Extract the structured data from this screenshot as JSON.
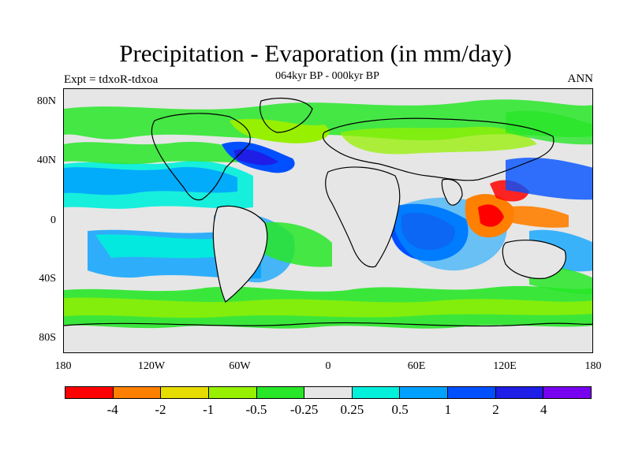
{
  "title": "Precipitation - Evaporation (in mm/day)",
  "subtitle": "064kyr BP - 000kyr BP",
  "left_label": "Expt = tdxoR-tdxoa",
  "right_label": "ANN",
  "y_ticks": [
    "80N",
    "40N",
    "0",
    "40S",
    "80S"
  ],
  "x_ticks": [
    "180",
    "120W",
    "60W",
    "0",
    "60E",
    "120E",
    "180"
  ],
  "colorbar": {
    "colors": [
      "#ff0000",
      "#ff8000",
      "#e6dc00",
      "#96f000",
      "#28e628",
      "#e6e6e6",
      "#00f0dc",
      "#00a0ff",
      "#0050ff",
      "#1e1ee6",
      "#7800f0"
    ],
    "labels": [
      "-4",
      "-2",
      "-1",
      "-0.5",
      "-0.25",
      "0.25",
      "0.5",
      "1",
      "2",
      "4"
    ]
  }
}
